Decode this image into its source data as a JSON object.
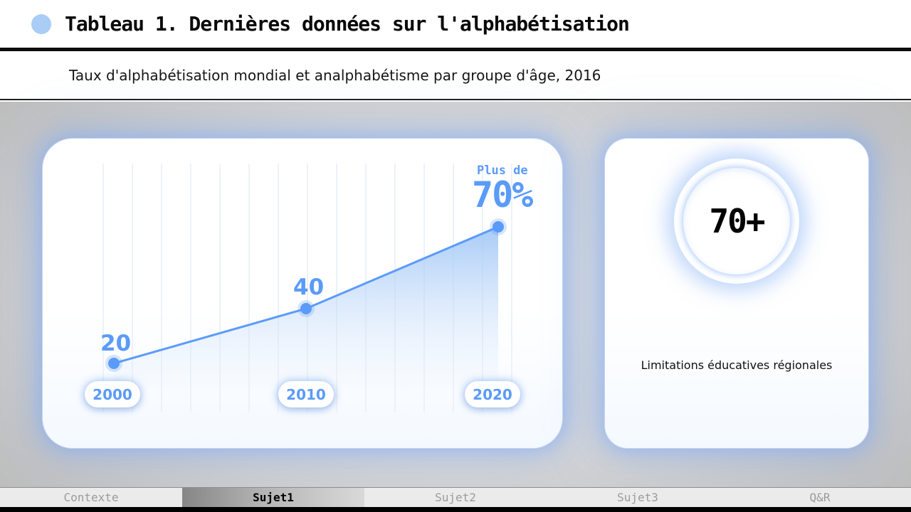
{
  "header": {
    "title": "Tableau 1. Dernières données sur l'alphabétisation"
  },
  "subtitle": {
    "text": "Taux d'alphabétisation mondial et analphabétisme par groupe d'âge, 2016"
  },
  "chart_data": {
    "type": "area",
    "title": "Taux d'alphabétisation mondial et analphabétisme par groupe d'âge, 2016",
    "categories": [
      "2000",
      "2010",
      "2020"
    ],
    "values": [
      20,
      40,
      70
    ],
    "value_labels": [
      "20",
      "40",
      "70%"
    ],
    "annotation_prefix": "Plus de",
    "ylim": [
      0,
      80
    ],
    "line_color": "#5b9bf8",
    "grid": "vertical-faint",
    "legend": "none"
  },
  "stat_card": {
    "value": "70+",
    "caption": "Limitations éducatives régionales"
  },
  "footer": {
    "items": [
      {
        "label": "Contexte",
        "active": false
      },
      {
        "label": "Sujet1",
        "active": true
      },
      {
        "label": "Sujet2",
        "active": false
      },
      {
        "label": "Sujet3",
        "active": false
      },
      {
        "label": "Q&R",
        "active": false
      }
    ]
  },
  "colors": {
    "accent": "#5b9bf8",
    "bullet": "#a9cdf4",
    "glow": "#7fb0f5"
  }
}
